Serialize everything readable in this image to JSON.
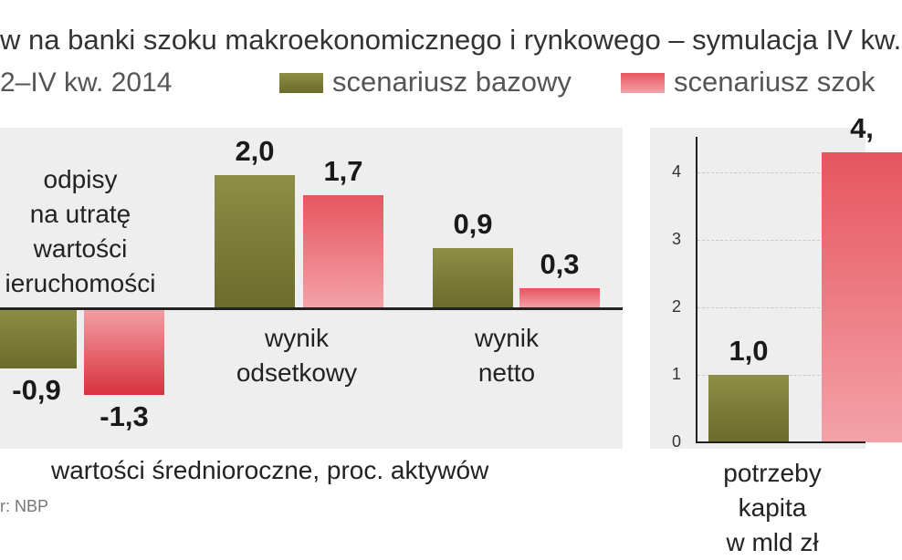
{
  "header": {
    "title": "w na banki szoku makroekonomicznego i rynkowego – symulacja IV kw.",
    "subtitle": "2–IV kw. 2014",
    "legend": [
      {
        "label": "scenariusz bazowy",
        "color": "#7b7c37"
      },
      {
        "label": "scenariusz szok",
        "color": "#e34550"
      }
    ]
  },
  "chart_data": [
    {
      "type": "bar",
      "categories": [
        "odpisy\nna utratę\nwartości\nieruchomości",
        "wynik\nodsetkowy",
        "wynik\nnetto"
      ],
      "series": [
        {
          "name": "scenariusz bazowy",
          "values": [
            -0.9,
            2.0,
            0.9
          ]
        },
        {
          "name": "scenariusz szok",
          "values": [
            -1.3,
            1.7,
            0.3
          ]
        }
      ],
      "value_labels": [
        [
          "-0,9",
          "2,0",
          "0,9"
        ],
        [
          "-1,3",
          "1,7",
          "0,3"
        ]
      ],
      "note": "wartości średnioroczne, proc. aktywów"
    },
    {
      "type": "bar",
      "categories": [
        "potrzeby kapita\nw mld zł"
      ],
      "series": [
        {
          "name": "scenariusz bazowy",
          "values": [
            1.0
          ]
        },
        {
          "name": "scenariusz szok",
          "values": [
            4.3
          ]
        }
      ],
      "value_labels": [
        [
          "1,0"
        ],
        [
          "4,"
        ]
      ],
      "ylim": [
        0,
        4.5
      ],
      "yticks": [
        "0",
        "1",
        "2",
        "3",
        "4"
      ]
    }
  ],
  "footer": {
    "source": "r: NBP"
  }
}
